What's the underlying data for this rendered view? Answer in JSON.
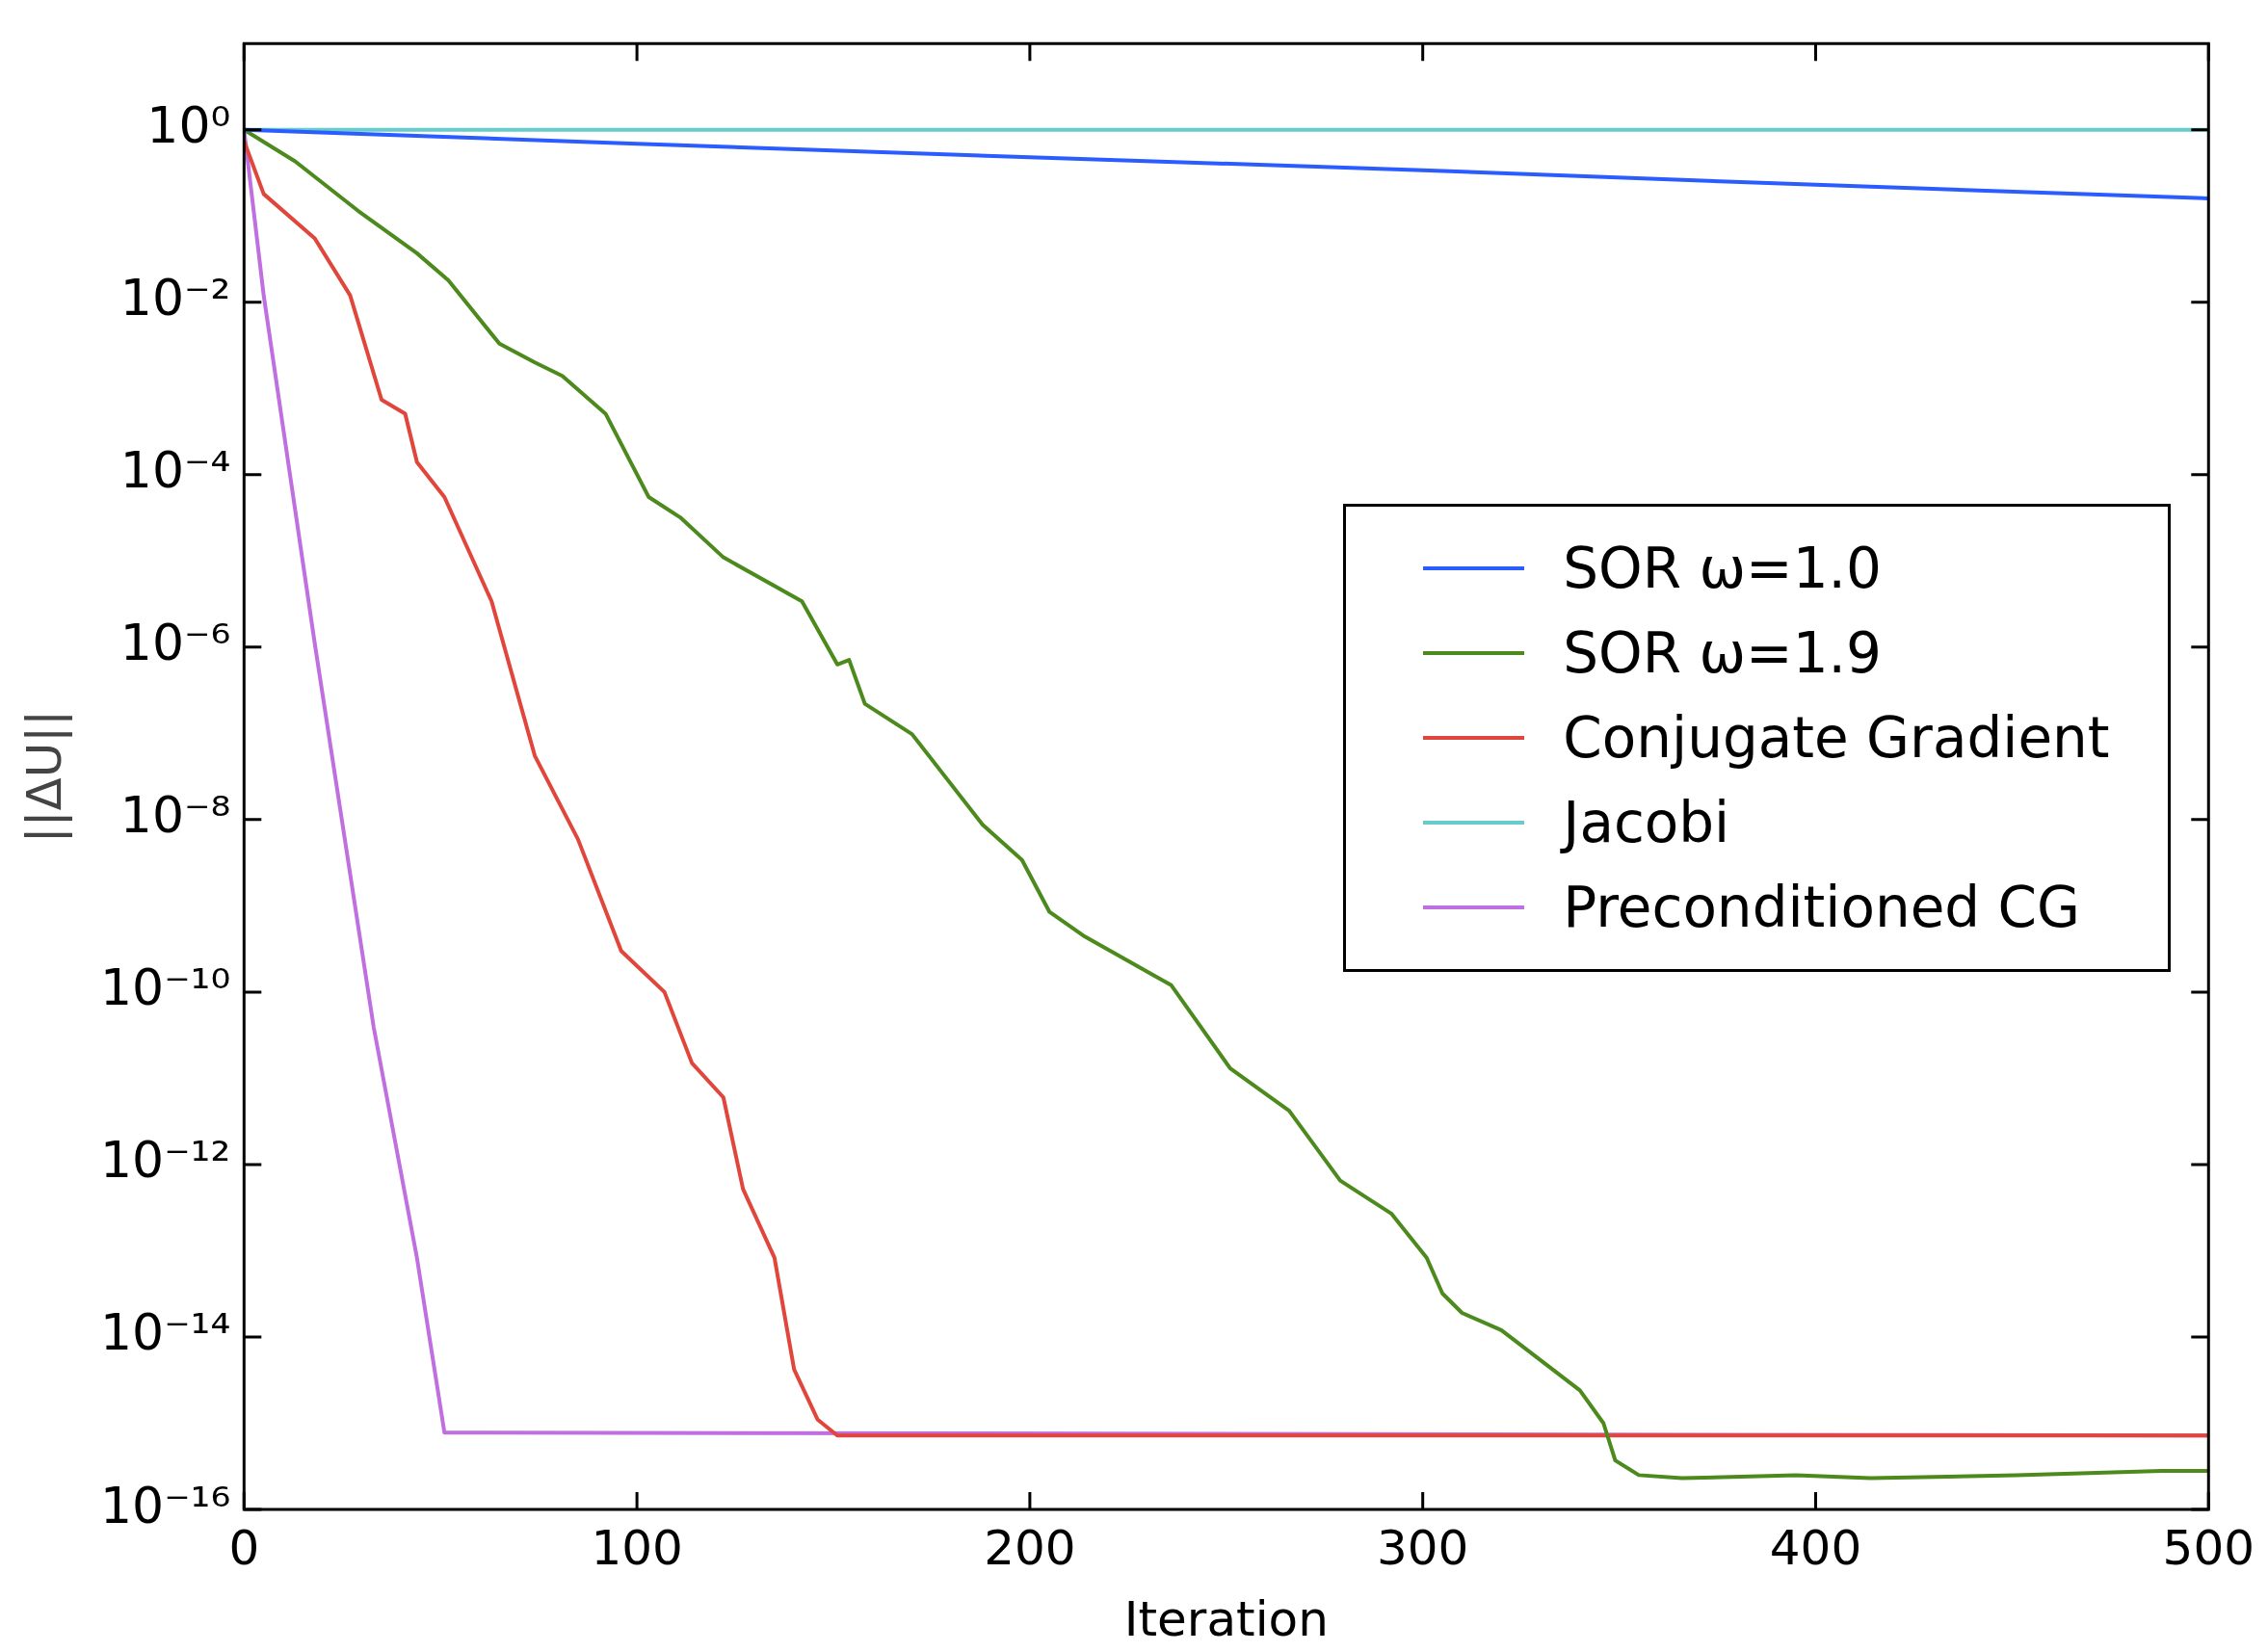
{
  "chart_data": {
    "type": "line",
    "xlabel": "Iteration",
    "ylabel": "||ΔU||",
    "log": "y",
    "grid": false,
    "legend": "right",
    "marker": "none",
    "line_style": "solid",
    "xlim": [
      0,
      500
    ],
    "xticks": [
      0,
      100,
      200,
      300,
      400,
      500
    ],
    "ylim": [
      1e-16,
      10
    ],
    "yticks": [
      {
        "value": 1e-16,
        "label": "10⁻¹⁶"
      },
      {
        "value": 1e-14,
        "label": "10⁻¹⁴"
      },
      {
        "value": 1e-12,
        "label": "10⁻¹²"
      },
      {
        "value": 1e-10,
        "label": "10⁻¹⁰"
      },
      {
        "value": 1e-08,
        "label": "10⁻⁸"
      },
      {
        "value": 1e-06,
        "label": "10⁻⁶"
      },
      {
        "value": 0.0001,
        "label": "10⁻⁴"
      },
      {
        "value": 0.01,
        "label": "10⁻²"
      },
      {
        "value": 1,
        "label": "10⁰"
      }
    ],
    "series": [
      {
        "name": "SOR ω=1.0",
        "color": "#2b5cff",
        "x": [
          0,
          100,
          200,
          300,
          400,
          500
        ],
        "values": [
          1,
          0.69,
          0.48,
          0.34,
          0.23,
          0.16
        ]
      },
      {
        "name": "SOR ω=1.9",
        "color": "#4d8a1e",
        "x": [
          0,
          13,
          29,
          44,
          52,
          65,
          74,
          81,
          92,
          103,
          111,
          122,
          142,
          151,
          154,
          158,
          170,
          188,
          198,
          205,
          214,
          236,
          251,
          266,
          279,
          292,
          301,
          305,
          310,
          320,
          340,
          346,
          349,
          355,
          366,
          395,
          414,
          451,
          488,
          500
        ],
        "values": [
          1,
          0.43,
          0.115,
          0.037,
          0.018,
          0.0033,
          0.002,
          0.0014,
          0.00051,
          5.5e-05,
          3.2e-05,
          1.1e-05,
          3.4e-06,
          6.3e-07,
          7.1e-07,
          2.2e-07,
          9.8e-08,
          8.7e-09,
          3.4e-09,
          8.5e-10,
          4.4e-10,
          1.2e-10,
          1.3e-11,
          4.2e-12,
          6.5e-13,
          2.7e-13,
          8.3e-14,
          3.2e-14,
          1.9e-14,
          1.2e-14,
          2.4e-15,
          1e-15,
          3.7e-16,
          2.5e-16,
          2.3e-16,
          2.5e-16,
          2.3e-16,
          2.5e-16,
          2.8e-16,
          2.8e-16
        ]
      },
      {
        "name": "Conjugate Gradient",
        "color": "#e0463c",
        "x": [
          0,
          5,
          18,
          27,
          35,
          41,
          44,
          51,
          63,
          74,
          85,
          96,
          107,
          114,
          122,
          127,
          135,
          140,
          146,
          151,
          500
        ],
        "values": [
          0.74,
          0.18,
          0.055,
          0.012,
          0.00074,
          0.00051,
          0.00014,
          5.5e-05,
          3.4e-06,
          5.5e-08,
          5.9e-09,
          3e-10,
          1e-10,
          1.5e-11,
          6e-12,
          5.2e-13,
          8.3e-14,
          4.2e-15,
          1.1e-15,
          7.2e-16,
          7.2e-16
        ]
      },
      {
        "name": "Jacobi",
        "color": "#66cccc",
        "x": [
          0,
          500
        ],
        "values": [
          1,
          1
        ]
      },
      {
        "name": "Preconditioned CG",
        "color": "#bf6fdf",
        "x": [
          0,
          5,
          18,
          33,
          44,
          51,
          500
        ],
        "values": [
          1,
          0.012,
          1.1e-06,
          3.9e-11,
          8.3e-14,
          7.8e-16,
          7.2e-16
        ]
      }
    ]
  }
}
